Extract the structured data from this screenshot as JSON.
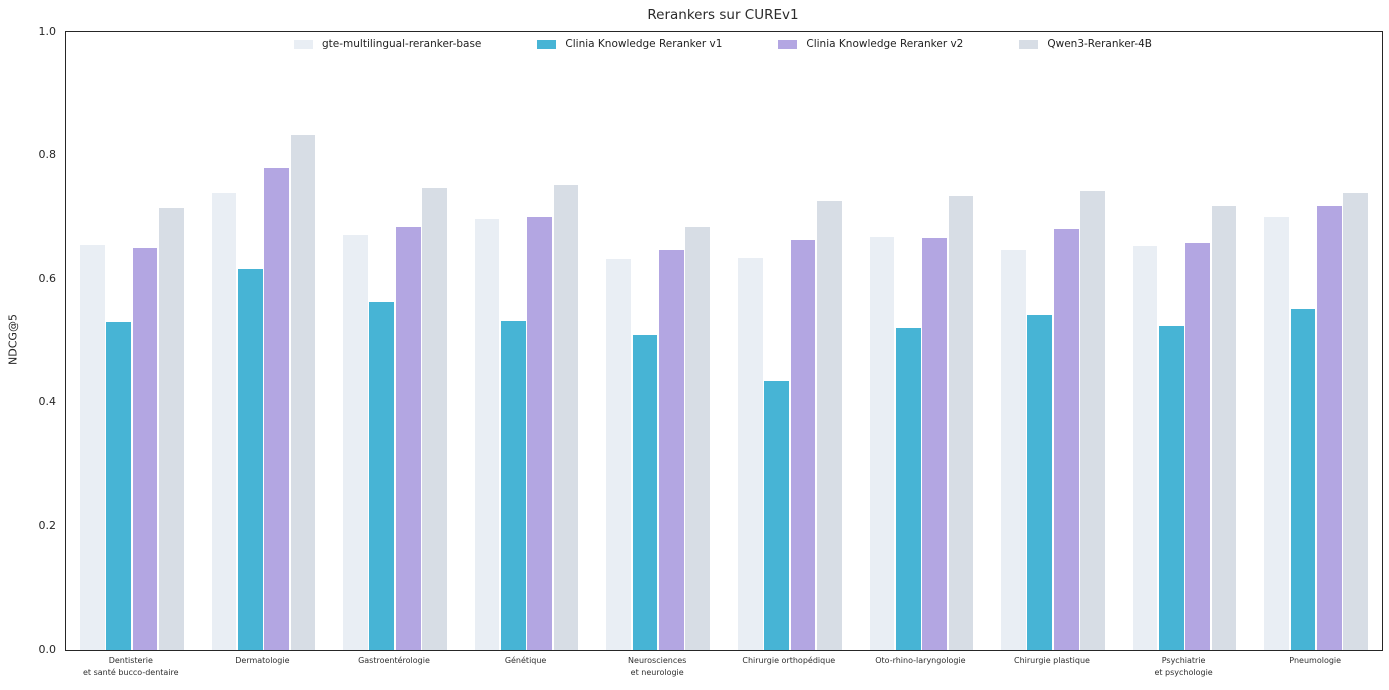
{
  "chart_data": {
    "type": "bar",
    "title": "Rerankers sur CUREv1",
    "xlabel": "",
    "ylabel": "NDCG@5",
    "ylim": [
      0.0,
      1.0
    ],
    "yticks": [
      0.0,
      0.2,
      0.4,
      0.6,
      0.8,
      1.0
    ],
    "grid": false,
    "legend_position": "upper center horizontal, inside plot, no frame",
    "categories": [
      "Dentisterie et santé bucco-dentaire",
      "Dermatologie",
      "Gastroentérologie",
      "Génétique",
      "Neurosciences et neurologie",
      "Chirurgie orthopédique",
      "Oto-rhino-laryngologie",
      "Chirurgie plastique",
      "Psychiatrie et psychologie",
      "Pneumologie"
    ],
    "category_display_lines": [
      [
        "Dentisterie",
        "et santé bucco-dentaire"
      ],
      [
        "Dermatologie"
      ],
      [
        "Gastroentérologie"
      ],
      [
        "Génétique"
      ],
      [
        "Neurosciences",
        "et neurologie"
      ],
      [
        "Chirurgie orthopédique"
      ],
      [
        "Oto-rhino-laryngologie"
      ],
      [
        "Chirurgie plastique"
      ],
      [
        "Psychiatrie",
        "et psychologie"
      ],
      [
        "Pneumologie"
      ]
    ],
    "series": [
      {
        "name": "gte-multilingual-reranker-base",
        "color": "#e9eef4",
        "values": [
          0.655,
          0.74,
          0.672,
          0.698,
          0.632,
          0.634,
          0.668,
          0.648,
          0.654,
          0.7
        ]
      },
      {
        "name": "Clinia Knowledge Reranker v1",
        "color": "#47b4d5",
        "values": [
          0.531,
          0.616,
          0.563,
          0.533,
          0.509,
          0.436,
          0.521,
          0.542,
          0.524,
          0.552
        ]
      },
      {
        "name": "Clinia Knowledge Reranker v2",
        "color": "#b3a6e2",
        "values": [
          0.65,
          0.78,
          0.684,
          0.701,
          0.648,
          0.663,
          0.666,
          0.681,
          0.658,
          0.718
        ]
      },
      {
        "name": "Qwen3-Reranker-4B",
        "color": "#d7dde5",
        "values": [
          0.715,
          0.834,
          0.748,
          0.753,
          0.684,
          0.727,
          0.734,
          0.742,
          0.719,
          0.74
        ]
      }
    ]
  }
}
